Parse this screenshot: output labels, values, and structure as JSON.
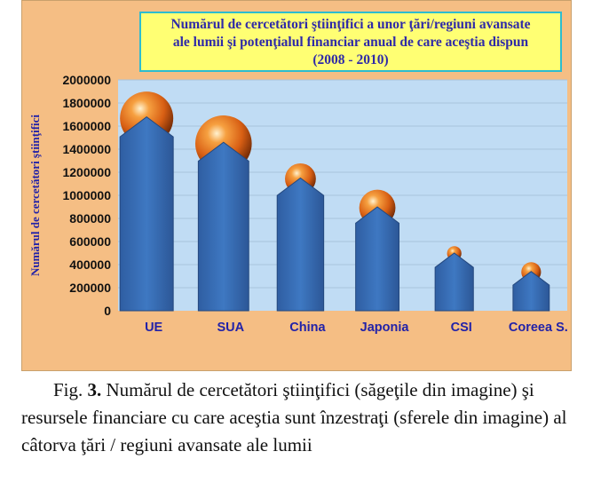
{
  "chart_data": {
    "type": "bar",
    "title_lines": [
      "Numărul de cercetători ştiinţifici a unor ţări/regiuni avansate",
      "ale lumii şi potenţialul financiar anual de care aceştia dispun",
      "(2008 - 2010)"
    ],
    "ylabel": "Numărul de cercetători ştiinţifici",
    "xlabel": "",
    "ylim": [
      0,
      2000000
    ],
    "y_ticks": [
      "0",
      "200000",
      "400000",
      "600000",
      "800000",
      "1000000",
      "1200000",
      "1400000",
      "1600000",
      "1800000",
      "2000000"
    ],
    "categories": [
      "UE",
      "SUA",
      "China",
      "Japonia",
      "CSI",
      "Coreea S."
    ],
    "values": [
      1680000,
      1460000,
      1150000,
      900000,
      500000,
      340000
    ],
    "sphere_relative_size": [
      1.0,
      1.06,
      0.58,
      0.68,
      0.27,
      0.37
    ],
    "grid": true,
    "legend": "none",
    "colors": {
      "plot_background": "#c0dcf4",
      "arrow_fill": "#3a6fb7",
      "sphere": "#e8781c",
      "category_label": "#2222a8",
      "axis_label": "#2222a8"
    }
  },
  "caption": {
    "prefix": "Fig. ",
    "number": "3.",
    "text": "Numărul de cercetători ştiinţifici (săgeţile din imagine) şi resursele financiare cu care aceştia sunt înzestraţi (sferele din imagine) al câtorva ţări / regiuni avansate ale lumii"
  }
}
